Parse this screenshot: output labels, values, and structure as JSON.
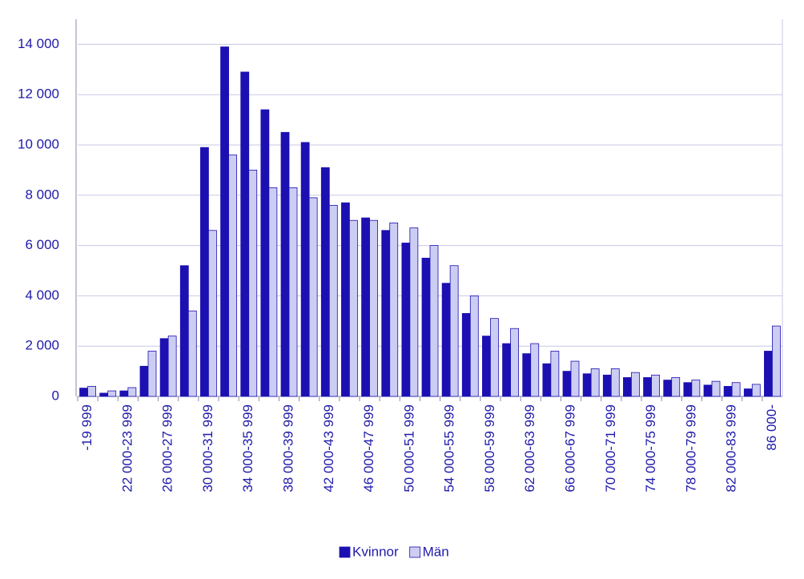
{
  "chart_data": {
    "type": "bar",
    "categories": [
      "-19 999",
      null,
      "22 000-23 999",
      null,
      "26 000-27 999",
      null,
      "30 000-31 999",
      null,
      "34 000-35 999",
      null,
      "38 000-39 999",
      null,
      "42 000-43 999",
      null,
      "46 000-47 999",
      null,
      "50 000-51 999",
      null,
      "54 000-55 999",
      null,
      "58 000-59 999",
      null,
      "62 000-63 999",
      null,
      "66 000-67 999",
      null,
      "70 000-71 999",
      null,
      "74 000-75 999",
      null,
      "78 000-79 999",
      null,
      "82 000-83 999",
      null,
      "86 000-"
    ],
    "series": [
      {
        "name": "Kvinnor",
        "color": "#1c10b2",
        "values": [
          330,
          130,
          220,
          1200,
          2300,
          5200,
          9900,
          13900,
          12900,
          11400,
          10500,
          10100,
          9100,
          7700,
          7100,
          6600,
          6100,
          5500,
          4500,
          3300,
          2400,
          2100,
          1700,
          1300,
          1000,
          900,
          850,
          750,
          750,
          650,
          550,
          450,
          400,
          300,
          1800
        ]
      },
      {
        "name": "Män",
        "color": "#cccdf2",
        "values": [
          400,
          220,
          350,
          1800,
          2400,
          3400,
          6600,
          9600,
          9000,
          8300,
          8300,
          7900,
          7600,
          7000,
          7000,
          6900,
          6700,
          6000,
          5200,
          4000,
          3100,
          2700,
          2100,
          1800,
          1400,
          1100,
          1100,
          950,
          850,
          750,
          650,
          600,
          550,
          480,
          2800
        ]
      }
    ],
    "ylim": [
      0,
      15000
    ],
    "yticks": [
      0,
      {
        "value": 2000,
        "label": "2 000"
      },
      {
        "value": 4000,
        "label": "4 000"
      },
      {
        "value": 6000,
        "label": "6 000"
      },
      {
        "value": 8000,
        "label": "8 000"
      },
      {
        "value": 10000,
        "label": "10 000"
      },
      {
        "value": 12000,
        "label": "12 000"
      },
      {
        "value": 14000,
        "label": "14 000"
      }
    ],
    "grid": true
  }
}
